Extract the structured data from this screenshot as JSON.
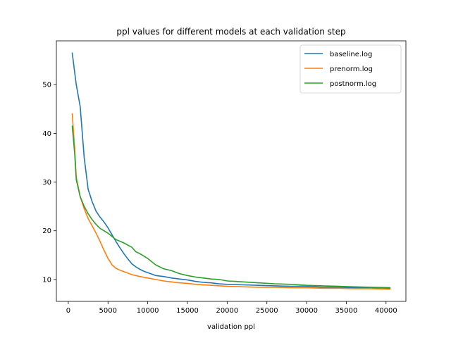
{
  "chart_data": {
    "type": "line",
    "title": "ppl values for different models at each validation step",
    "xlabel": "validation ppl",
    "ylabel": "",
    "xlim": [
      -1500,
      42500
    ],
    "ylim": [
      5.5,
      59
    ],
    "xticks": [
      0,
      5000,
      10000,
      15000,
      20000,
      25000,
      30000,
      35000,
      40000
    ],
    "yticks": [
      10,
      20,
      30,
      40,
      50
    ],
    "grid": false,
    "legend_position": "top-right",
    "series": [
      {
        "name": "baseline.log",
        "color": "#1f77b4",
        "points": [
          [
            500,
            56.5
          ],
          [
            1000,
            50
          ],
          [
            1500,
            45.5
          ],
          [
            2000,
            35
          ],
          [
            2500,
            28.5
          ],
          [
            3000,
            26
          ],
          [
            3500,
            24
          ],
          [
            4000,
            22.8
          ],
          [
            4500,
            21.8
          ],
          [
            5000,
            20.6
          ],
          [
            5500,
            19.2
          ],
          [
            6000,
            17.8
          ],
          [
            6500,
            16.5
          ],
          [
            7000,
            15.3
          ],
          [
            7500,
            14.2
          ],
          [
            8000,
            13.2
          ],
          [
            8500,
            12.6
          ],
          [
            9000,
            12.1
          ],
          [
            9500,
            11.7
          ],
          [
            10000,
            11.4
          ],
          [
            10500,
            11.1
          ],
          [
            11000,
            10.8
          ],
          [
            12000,
            10.6
          ],
          [
            13000,
            10.3
          ],
          [
            14000,
            10.1
          ],
          [
            15000,
            9.9
          ],
          [
            16000,
            9.6
          ],
          [
            17000,
            9.4
          ],
          [
            18000,
            9.3
          ],
          [
            19000,
            9.1
          ],
          [
            20000,
            9.0
          ],
          [
            22000,
            8.9
          ],
          [
            24000,
            8.8
          ],
          [
            26000,
            8.7
          ],
          [
            28000,
            8.6
          ],
          [
            30000,
            8.6
          ],
          [
            32000,
            8.4
          ],
          [
            34000,
            8.4
          ],
          [
            36000,
            8.3
          ],
          [
            38000,
            8.3
          ],
          [
            40500,
            8.2
          ]
        ]
      },
      {
        "name": "prenorm.log",
        "color": "#ff7f0e",
        "points": [
          [
            500,
            44
          ],
          [
            800,
            37
          ],
          [
            1000,
            31
          ],
          [
            1500,
            27
          ],
          [
            2000,
            24.5
          ],
          [
            2500,
            22.5
          ],
          [
            3000,
            21
          ],
          [
            3500,
            19.5
          ],
          [
            4000,
            17.8
          ],
          [
            4500,
            16
          ],
          [
            5000,
            14.3
          ],
          [
            5500,
            13
          ],
          [
            6000,
            12.3
          ],
          [
            6500,
            11.9
          ],
          [
            7000,
            11.6
          ],
          [
            7500,
            11.3
          ],
          [
            8000,
            11
          ],
          [
            8500,
            10.8
          ],
          [
            9000,
            10.6
          ],
          [
            10000,
            10.3
          ],
          [
            11000,
            10
          ],
          [
            12000,
            9.7
          ],
          [
            13000,
            9.5
          ],
          [
            14000,
            9.3
          ],
          [
            15000,
            9.2
          ],
          [
            16000,
            9.0
          ],
          [
            18000,
            8.8
          ],
          [
            20000,
            8.6
          ],
          [
            22000,
            8.5
          ],
          [
            24000,
            8.4
          ],
          [
            26000,
            8.4
          ],
          [
            28000,
            8.3
          ],
          [
            30000,
            8.3
          ],
          [
            32000,
            8.2
          ],
          [
            34000,
            8.2
          ],
          [
            36000,
            8.1
          ],
          [
            38000,
            8.1
          ],
          [
            40500,
            8.0
          ]
        ]
      },
      {
        "name": "postnorm.log",
        "color": "#2ca02c",
        "points": [
          [
            500,
            41.5
          ],
          [
            800,
            36
          ],
          [
            1000,
            30.5
          ],
          [
            1500,
            27
          ],
          [
            2000,
            25
          ],
          [
            2500,
            23.5
          ],
          [
            3000,
            22.3
          ],
          [
            3500,
            21.3
          ],
          [
            4000,
            20.5
          ],
          [
            5000,
            19.5
          ],
          [
            6000,
            18.2
          ],
          [
            7000,
            17.5
          ],
          [
            8000,
            16.6
          ],
          [
            8500,
            15.7
          ],
          [
            9000,
            15.3
          ],
          [
            10000,
            14.3
          ],
          [
            11000,
            13.0
          ],
          [
            12000,
            12.2
          ],
          [
            13000,
            11.8
          ],
          [
            14000,
            11.2
          ],
          [
            15000,
            10.8
          ],
          [
            16000,
            10.5
          ],
          [
            17000,
            10.3
          ],
          [
            18000,
            10.1
          ],
          [
            19000,
            10.0
          ],
          [
            20000,
            9.7
          ],
          [
            21000,
            9.6
          ],
          [
            22000,
            9.5
          ],
          [
            24000,
            9.3
          ],
          [
            26000,
            9.1
          ],
          [
            28000,
            9.0
          ],
          [
            30000,
            8.8
          ],
          [
            32000,
            8.7
          ],
          [
            34000,
            8.6
          ],
          [
            36000,
            8.5
          ],
          [
            38000,
            8.4
          ],
          [
            40500,
            8.3
          ]
        ]
      }
    ]
  }
}
